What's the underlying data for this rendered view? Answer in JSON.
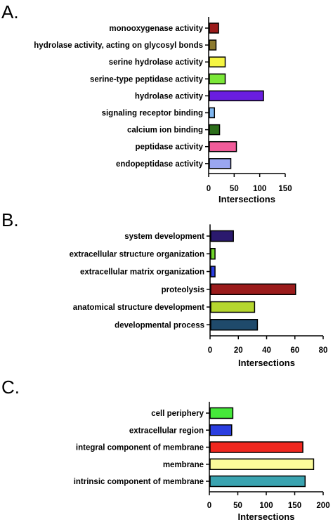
{
  "chart_data": [
    {
      "type": "bar",
      "orientation": "horizontal",
      "panel": "A.",
      "categories": [
        "monooxygenase activity",
        "hydrolase activity, acting on glycosyl bonds",
        "serine hydrolase activity",
        "serine-type peptidase activity",
        "hydrolase activity",
        "signaling receptor binding",
        "calcium ion binding",
        "peptidase activity",
        "endopeptidase activity"
      ],
      "values": [
        18,
        13,
        31,
        31,
        106,
        10,
        20,
        53,
        42
      ],
      "colors": [
        "#9b1c1c",
        "#8c7a2e",
        "#f5f542",
        "#7be838",
        "#6a1ee0",
        "#7fb6ef",
        "#2c6e1a",
        "#f25c9a",
        "#9aa6f0"
      ],
      "xlabel": "Intersections",
      "xticks": [
        "0",
        "50",
        "100",
        "150"
      ],
      "xlim": [
        0,
        150
      ]
    },
    {
      "type": "bar",
      "orientation": "horizontal",
      "panel": "B.",
      "categories": [
        "system development",
        "extracellular structure organization",
        "extracellular matrix organization",
        "proteolysis",
        "anatomical structure development",
        "developmental process"
      ],
      "values": [
        16,
        3,
        3,
        60,
        31,
        33
      ],
      "colors": [
        "#2b1a6e",
        "#6fd42a",
        "#2b3ee0",
        "#9b1c1c",
        "#b5d62e",
        "#1f4a6b"
      ],
      "xlabel": "Intersections",
      "xticks": [
        "0",
        "20",
        "40",
        "60",
        "80"
      ],
      "xlim": [
        0,
        80
      ]
    },
    {
      "type": "bar",
      "orientation": "horizontal",
      "panel": "C.",
      "categories": [
        "cell periphery",
        "extracellular region",
        "integral component of membrane",
        "membrane",
        "intrinsic component of membrane"
      ],
      "values": [
        40,
        38,
        163,
        182,
        167
      ],
      "colors": [
        "#46e83a",
        "#2b3ee0",
        "#f0271f",
        "#fbfb9a",
        "#3aa3b0"
      ],
      "xlabel": "Intersections",
      "xticks": [
        "0",
        "50",
        "100",
        "150",
        "200"
      ],
      "xlim": [
        0,
        200
      ]
    }
  ]
}
